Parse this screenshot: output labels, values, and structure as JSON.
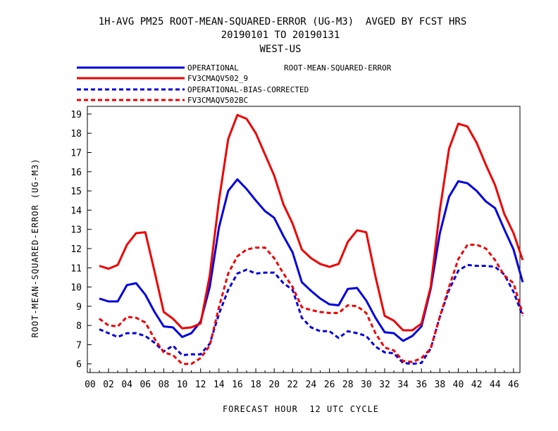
{
  "chart_data": {
    "type": "line",
    "title": "1H-AVG PM25 ROOT-MEAN-SQUARED-ERROR (UG-M3)  AVGED BY FCST HRS",
    "subtitle": "20190101 TO 20190131",
    "region": "WEST-US",
    "xlabel": "FORECAST HOUR  12 UTC CYCLE",
    "ylabel": "ROOT-MEAN-SQUARED-ERROR (UG-M3)",
    "stat_label": "ROOT-MEAN-SQUARED-ERROR",
    "xlim": [
      -0.3,
      46.7
    ],
    "ylim": [
      5.55,
      19.4
    ],
    "x_ticks": [
      0,
      2,
      4,
      6,
      8,
      10,
      12,
      14,
      16,
      18,
      20,
      22,
      24,
      26,
      28,
      30,
      32,
      34,
      36,
      38,
      40,
      42,
      44,
      46
    ],
    "x_tick_labels": [
      "00",
      "02",
      "04",
      "06",
      "08",
      "10",
      "12",
      "14",
      "16",
      "18",
      "20",
      "22",
      "24",
      "26",
      "28",
      "30",
      "32",
      "34",
      "36",
      "38",
      "40",
      "42",
      "44",
      "46"
    ],
    "y_ticks": [
      6,
      7,
      8,
      9,
      10,
      11,
      12,
      13,
      14,
      15,
      16,
      17,
      18,
      19
    ],
    "y_tick_labels": [
      "6",
      "7",
      "8",
      "9",
      "10",
      "11",
      "12",
      "13",
      "14",
      "15",
      "16",
      "17",
      "18",
      "19"
    ],
    "grid": false,
    "legend_position": "top-left",
    "x": [
      1,
      2,
      3,
      4,
      5,
      6,
      7,
      8,
      9,
      10,
      11,
      12,
      13,
      14,
      15,
      16,
      17,
      18,
      19,
      20,
      21,
      22,
      23,
      24,
      25,
      26,
      27,
      28,
      29,
      30,
      31,
      32,
      33,
      34,
      35,
      36,
      37,
      38,
      39,
      40,
      41,
      42,
      43,
      44,
      45,
      46,
      47
    ],
    "series": [
      {
        "name": "OPERATIONAL",
        "color": "#0000dd",
        "dashed": false,
        "values": [
          9.4,
          9.25,
          9.25,
          10.1,
          10.2,
          9.6,
          8.7,
          7.95,
          7.9,
          7.4,
          7.6,
          8.2,
          10.0,
          13.1,
          15.0,
          15.6,
          15.1,
          14.5,
          13.95,
          13.6,
          12.65,
          11.8,
          10.25,
          9.8,
          9.4,
          9.1,
          9.05,
          9.9,
          9.95,
          9.3,
          8.4,
          7.65,
          7.6,
          7.2,
          7.45,
          7.95,
          9.9,
          12.8,
          14.7,
          15.5,
          15.4,
          15.0,
          14.45,
          14.1,
          13.0,
          11.95,
          10.25
        ]
      },
      {
        "name": "FV3CMAQV502_9",
        "color": "#ee0000",
        "dashed": false,
        "values": [
          11.1,
          10.95,
          11.15,
          12.2,
          12.8,
          12.85,
          10.8,
          8.7,
          8.35,
          7.85,
          7.9,
          8.1,
          10.6,
          14.5,
          17.7,
          18.95,
          18.75,
          18.0,
          16.9,
          15.8,
          14.3,
          13.3,
          11.95,
          11.5,
          11.2,
          11.05,
          11.2,
          12.35,
          12.95,
          12.85,
          10.55,
          8.5,
          8.25,
          7.75,
          7.75,
          8.1,
          10.0,
          14.0,
          17.2,
          18.5,
          18.35,
          17.5,
          16.35,
          15.3,
          13.8,
          12.8,
          11.4
        ]
      },
      {
        "name": "OPERATIONAL-BIAS-CORRECTED",
        "color": "#0000dd",
        "dashed": true,
        "values": [
          7.8,
          7.6,
          7.4,
          7.6,
          7.6,
          7.45,
          7.1,
          6.65,
          6.95,
          6.45,
          6.5,
          6.5,
          7.05,
          8.6,
          9.85,
          10.7,
          10.9,
          10.7,
          10.75,
          10.75,
          10.2,
          9.85,
          8.4,
          7.9,
          7.7,
          7.7,
          7.35,
          7.7,
          7.6,
          7.45,
          6.9,
          6.6,
          6.55,
          6.05,
          6.0,
          6.05,
          6.8,
          8.45,
          9.85,
          10.85,
          11.15,
          11.1,
          11.1,
          11.05,
          10.65,
          9.75,
          8.5
        ]
      },
      {
        "name": "FV3CMAQV502BC",
        "color": "#ee0000",
        "dashed": true,
        "values": [
          8.35,
          8.0,
          7.95,
          8.45,
          8.4,
          8.15,
          7.3,
          6.6,
          6.45,
          6.0,
          6.0,
          6.3,
          6.95,
          8.95,
          10.7,
          11.6,
          11.95,
          12.05,
          12.05,
          11.5,
          10.7,
          10.0,
          8.95,
          8.8,
          8.7,
          8.65,
          8.65,
          9.05,
          9.0,
          8.65,
          7.6,
          6.85,
          6.7,
          6.15,
          6.1,
          6.3,
          6.8,
          8.45,
          10.0,
          11.45,
          12.2,
          12.2,
          12.0,
          11.4,
          10.6,
          10.2,
          8.6
        ]
      }
    ]
  }
}
